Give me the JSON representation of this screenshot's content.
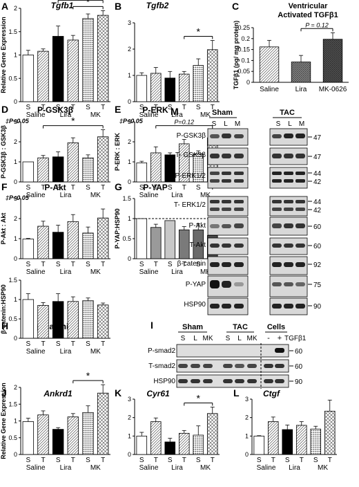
{
  "figure": {
    "panels": {
      "A": {
        "letter": "A",
        "title": "Tgfb1",
        "title_italic": true,
        "ylabel": "Relative Gene Expression"
      },
      "B": {
        "letter": "B",
        "title": "Tgfb2",
        "title_italic": true,
        "ylabel": ""
      },
      "C": {
        "letter": "C",
        "title_line1": "Ventricular",
        "title_line2": "Activated TGFβ1",
        "ylabel": "TGFβ1 (pg/ mg protein)",
        "pvalue": "P = 0.12"
      },
      "D": {
        "letter": "D",
        "title": "P-GSK3β",
        "ylabel": "P-GSK3β : GSK3β",
        "note": "‡P<0.05"
      },
      "E": {
        "letter": "E",
        "title": "P-ERK",
        "ylabel": "P-ERK : ERK",
        "note": "‡P<0.05",
        "pvalue": "P=0.12"
      },
      "F": {
        "letter": "F",
        "title": "P-Akt",
        "ylabel": "P-Akt : Akt",
        "note": "‡P<0.05"
      },
      "G": {
        "letter": "G",
        "title": "P-YAP",
        "ylabel": "P-YAP:HSP90"
      },
      "H": {
        "letter": "H",
        "title": "β-catenin",
        "ylabel": "β-catenin:HSP90"
      },
      "I": {
        "letter": "I"
      },
      "J": {
        "letter": "J",
        "title": "Ankrd1",
        "title_italic": true,
        "ylabel": "Relative Gene Expression"
      },
      "K": {
        "letter": "K",
        "title": "Cyr61",
        "title_italic": true,
        "ylabel": ""
      },
      "L": {
        "letter": "L",
        "title": "Ctgf",
        "title_italic": true,
        "ylabel": ""
      },
      "M": {
        "letter": "M"
      }
    },
    "bar_labels": [
      "S",
      "T",
      "S",
      "T",
      "S",
      "T"
    ],
    "group_labels": [
      "Saline",
      "Lira",
      "MK"
    ],
    "significance_mark": "*",
    "blot_M": {
      "groups": [
        "Sham",
        "TAC"
      ],
      "lanes": [
        "S",
        "L",
        "M",
        "S",
        "L",
        "M"
      ],
      "rows": [
        "P-GSK3β",
        "T- GSK3β",
        "P-ERK1/2",
        "T- ERK1/2",
        "P-Akt",
        "T-Akt",
        "β-catenin",
        "P-YAP",
        "HSP90"
      ],
      "mw": [
        "47",
        "47",
        "44",
        "42",
        "44",
        "42",
        "60",
        "60",
        "92",
        "75",
        "90"
      ]
    },
    "blot_I": {
      "groups": [
        "Sham",
        "TAC",
        "Cells"
      ],
      "lanes": [
        "S",
        "L",
        "MK",
        "S",
        "L",
        "MK",
        "-",
        "+"
      ],
      "treatment": "TGFβ1",
      "rows": [
        "P-smad2",
        "T-smad2",
        "HSP90"
      ],
      "mw": [
        "60",
        "60",
        "90"
      ]
    }
  },
  "chart_data": [
    {
      "panel": "A",
      "type": "bar",
      "categories": [
        "S",
        "T",
        "S",
        "T",
        "S",
        "T"
      ],
      "groups": [
        "Saline",
        "Lira",
        "MK"
      ],
      "title": "Tgfb1",
      "ylabel": "Relative Gene Expression",
      "ylim": [
        0,
        2
      ],
      "yticks": [
        0,
        0.5,
        1,
        1.5,
        2
      ],
      "values": [
        1.0,
        1.08,
        1.4,
        1.32,
        1.78,
        1.85
      ],
      "errors": [
        0.1,
        0.05,
        0.22,
        0.1,
        0.1,
        0.1
      ],
      "significance": [
        [
          2,
          5
        ],
        [
          3,
          5
        ]
      ]
    },
    {
      "panel": "B",
      "type": "bar",
      "categories": [
        "S",
        "T",
        "S",
        "T",
        "S",
        "T"
      ],
      "groups": [
        "Saline",
        "Lira",
        "MK"
      ],
      "title": "Tgfb2",
      "ylim": [
        0,
        3
      ],
      "yticks": [
        0,
        1,
        2,
        3
      ],
      "values": [
        1.0,
        1.08,
        0.9,
        1.05,
        1.38,
        1.98
      ],
      "errors": [
        0.1,
        0.22,
        0.25,
        0.1,
        0.25,
        0.35
      ],
      "significance": [
        [
          3,
          5
        ]
      ]
    },
    {
      "panel": "C",
      "type": "bar",
      "categories": [
        "Saline",
        "Lira",
        "MK-0626"
      ],
      "title": "Ventricular Activated TGFβ1",
      "ylabel": "TGFβ1 (pg/ mg protein)",
      "ylim": [
        0,
        0.25
      ],
      "yticks": [
        0,
        0.05,
        0.1,
        0.15,
        0.2,
        0.25
      ],
      "values": [
        0.162,
        0.093,
        0.197
      ],
      "errors": [
        0.03,
        0.03,
        0.03
      ],
      "pvalue_bracket": [
        1,
        2
      ]
    },
    {
      "panel": "D",
      "type": "bar",
      "categories": [
        "S",
        "T",
        "S",
        "T",
        "S",
        "T"
      ],
      "groups": [
        "Saline",
        "Lira",
        "MK"
      ],
      "title": "P-GSK3β",
      "ylabel": "P-GSK3β : GSK3β",
      "ylim": [
        0,
        3
      ],
      "yticks": [
        0,
        1,
        2,
        3
      ],
      "values": [
        1.0,
        1.2,
        1.25,
        1.95,
        1.2,
        2.25
      ],
      "errors": [
        0.0,
        0.12,
        0.25,
        0.25,
        0.15,
        0.35
      ],
      "significance": [
        [
          1,
          5
        ]
      ]
    },
    {
      "panel": "E",
      "type": "bar",
      "categories": [
        "S",
        "T",
        "S",
        "T",
        "S",
        "T"
      ],
      "groups": [
        "Saline",
        "Lira",
        "MK"
      ],
      "title": "P-ERK",
      "ylabel": "P-ERK : ERK",
      "ylim": [
        0,
        3
      ],
      "yticks": [
        0,
        1,
        2,
        3
      ],
      "values": [
        0.95,
        1.45,
        1.35,
        1.9,
        1.4,
        2.2
      ],
      "errors": [
        0.08,
        0.3,
        0.1,
        0.22,
        0.15,
        0.4
      ],
      "pvalue_bracket": [
        1,
        5
      ]
    },
    {
      "panel": "F",
      "type": "bar",
      "categories": [
        "S",
        "T",
        "S",
        "T",
        "S",
        "T"
      ],
      "groups": [
        "Saline",
        "Lira",
        "MK"
      ],
      "title": "P-Akt",
      "ylabel": "P-Akt : Akt",
      "ylim": [
        0,
        3
      ],
      "yticks": [
        0,
        1,
        2,
        3
      ],
      "values": [
        0.98,
        1.62,
        1.32,
        1.85,
        1.28,
        2.03
      ],
      "errors": [
        0.03,
        0.25,
        0.35,
        0.35,
        0.3,
        0.45
      ]
    },
    {
      "panel": "G",
      "type": "bar",
      "categories": [
        "S",
        "T",
        "S",
        "T",
        "S",
        "T"
      ],
      "groups": [
        "Saline",
        "Lira",
        "MK"
      ],
      "title": "P-YAP",
      "ylabel": "P-YAP:HSP90",
      "ylim": [
        0,
        1.5
      ],
      "yticks": [
        0,
        0.5,
        1,
        1.5
      ],
      "values": [
        1.0,
        0.78,
        0.95,
        0.72,
        0.72,
        0.58
      ],
      "errors": [
        0.0,
        0.08,
        0.0,
        0.08,
        0.15,
        0.12
      ],
      "reference_line": 1.0
    },
    {
      "panel": "H",
      "type": "bar",
      "categories": [
        "S",
        "T",
        "S",
        "T",
        "S",
        "T"
      ],
      "groups": [
        "Saline",
        "Lira",
        "MK"
      ],
      "title": "β-catenin",
      "ylabel": "β-catenin:HSP90",
      "ylim": [
        0,
        1.5
      ],
      "yticks": [
        0,
        0.5,
        1,
        1.5
      ],
      "values": [
        1.0,
        0.85,
        0.95,
        0.95,
        0.97,
        0.86
      ],
      "errors": [
        0.15,
        0.07,
        0.2,
        0.12,
        0.07,
        0.05
      ]
    },
    {
      "panel": "J",
      "type": "bar",
      "categories": [
        "S",
        "T",
        "S",
        "T",
        "S",
        "T"
      ],
      "groups": [
        "Saline",
        "Lira",
        "MK"
      ],
      "title": "Ankrd1",
      "ylabel": "Relative Gene Expression",
      "ylim": [
        0,
        2
      ],
      "yticks": [
        0,
        0.5,
        1,
        1.5,
        2
      ],
      "values": [
        0.98,
        1.18,
        0.75,
        1.12,
        1.25,
        1.83
      ],
      "errors": [
        0.1,
        0.12,
        0.05,
        0.1,
        0.2,
        0.25
      ],
      "significance": [
        [
          3,
          5
        ]
      ]
    },
    {
      "panel": "K",
      "type": "bar",
      "categories": [
        "S",
        "T",
        "S",
        "T",
        "S",
        "T"
      ],
      "groups": [
        "Saline",
        "Lira",
        "MK"
      ],
      "title": "Cyr61",
      "ylim": [
        0,
        3
      ],
      "yticks": [
        0,
        1,
        2,
        3
      ],
      "values": [
        1.0,
        1.78,
        0.68,
        1.15,
        1.05,
        2.22
      ],
      "errors": [
        0.2,
        0.2,
        0.2,
        0.15,
        0.5,
        0.35
      ],
      "significance": [
        [
          3,
          5
        ]
      ]
    },
    {
      "panel": "L",
      "type": "bar",
      "categories": [
        "S",
        "T",
        "S",
        "T",
        "S",
        "T"
      ],
      "groups": [
        "Saline",
        "Lira",
        "MK"
      ],
      "title": "Ctgf",
      "ylim": [
        0,
        3
      ],
      "yticks": [
        0,
        1,
        2,
        3
      ],
      "values": [
        1.0,
        1.78,
        1.35,
        1.58,
        1.38,
        2.35
      ],
      "errors": [
        0.02,
        0.25,
        0.25,
        0.2,
        0.15,
        0.6
      ]
    }
  ]
}
